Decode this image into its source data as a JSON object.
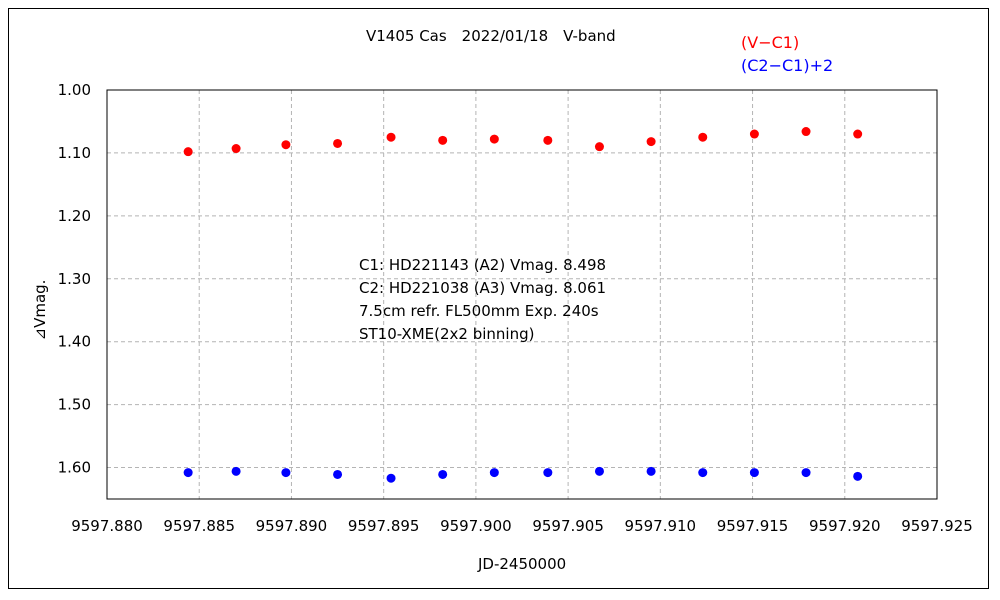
{
  "chart_data": {
    "type": "scatter",
    "title": "V1405 Cas　2022/01/18　V-band",
    "xlabel": "JD-2450000",
    "ylabel": "⊿Vmag.",
    "xlim": [
      9597.88,
      9597.925
    ],
    "ylim": [
      1.0,
      1.65
    ],
    "y_inverted": true,
    "grid": true,
    "x_ticks": [
      "9597.880",
      "9597.885",
      "9597.890",
      "9597.895",
      "9597.900",
      "9597.905",
      "9597.910",
      "9597.915",
      "9597.920",
      "9597.925"
    ],
    "y_ticks": [
      "1.00",
      "1.10",
      "1.20",
      "1.30",
      "1.40",
      "1.50",
      "1.60"
    ],
    "legend_placement": "top-right",
    "series": [
      {
        "name": "(V−C1)",
        "color": "#ff0000",
        "x": [
          9597.8844,
          9597.887,
          9597.8897,
          9597.8925,
          9597.8954,
          9597.8982,
          9597.901,
          9597.9039,
          9597.9067,
          9597.9095,
          9597.9123,
          9597.9151,
          9597.9179,
          9597.9207
        ],
        "y": [
          1.098,
          1.093,
          1.087,
          1.085,
          1.075,
          1.08,
          1.078,
          1.08,
          1.09,
          1.082,
          1.075,
          1.07,
          1.066,
          1.07
        ]
      },
      {
        "name": "(C2−C1)+2",
        "color": "#0000ff",
        "x": [
          9597.8844,
          9597.887,
          9597.8897,
          9597.8925,
          9597.8954,
          9597.8982,
          9597.901,
          9597.9039,
          9597.9067,
          9597.9095,
          9597.9123,
          9597.9151,
          9597.9179,
          9597.9207
        ],
        "y": [
          1.608,
          1.606,
          1.608,
          1.611,
          1.617,
          1.611,
          1.608,
          1.608,
          1.606,
          1.606,
          1.608,
          1.608,
          1.608,
          1.614
        ]
      }
    ],
    "annotations": [
      "C1: HD221143 (A2) Vmag. 8.498",
      "C2: HD221038 (A3) Vmag. 8.061",
      "7.5cm refr. FL500mm Exp. 240s",
      "ST10-XME(2x2 binning)"
    ]
  }
}
